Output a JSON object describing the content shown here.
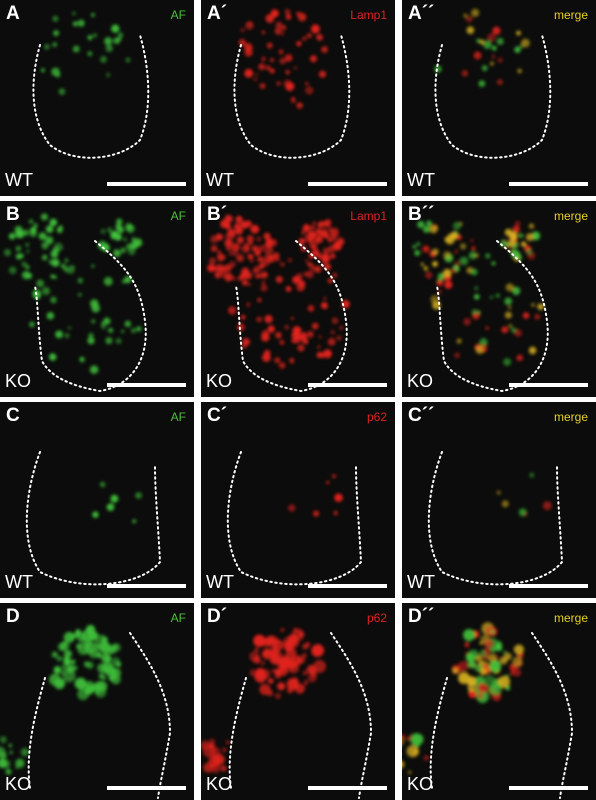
{
  "rows": [
    {
      "panels": [
        {
          "label": "A",
          "stain": "AF",
          "genotype": "WT"
        },
        {
          "label": "A´",
          "stain": "Lamp1",
          "genotype": "WT"
        },
        {
          "label": "A´´",
          "stain": "merge",
          "genotype": "WT"
        }
      ]
    },
    {
      "panels": [
        {
          "label": "B",
          "stain": "AF",
          "genotype": "KO"
        },
        {
          "label": "B´",
          "stain": "Lamp1",
          "genotype": "KO"
        },
        {
          "label": "B´´",
          "stain": "merge",
          "genotype": "KO"
        }
      ]
    },
    {
      "panels": [
        {
          "label": "C",
          "stain": "AF",
          "genotype": "WT"
        },
        {
          "label": "C´",
          "stain": "p62",
          "genotype": "WT"
        },
        {
          "label": "C´´",
          "stain": "merge",
          "genotype": "WT"
        }
      ]
    },
    {
      "panels": [
        {
          "label": "D",
          "stain": "AF",
          "genotype": "KO"
        },
        {
          "label": "D´",
          "stain": "p62",
          "genotype": "KO"
        },
        {
          "label": "D´´",
          "stain": "merge",
          "genotype": "KO"
        }
      ]
    }
  ]
}
